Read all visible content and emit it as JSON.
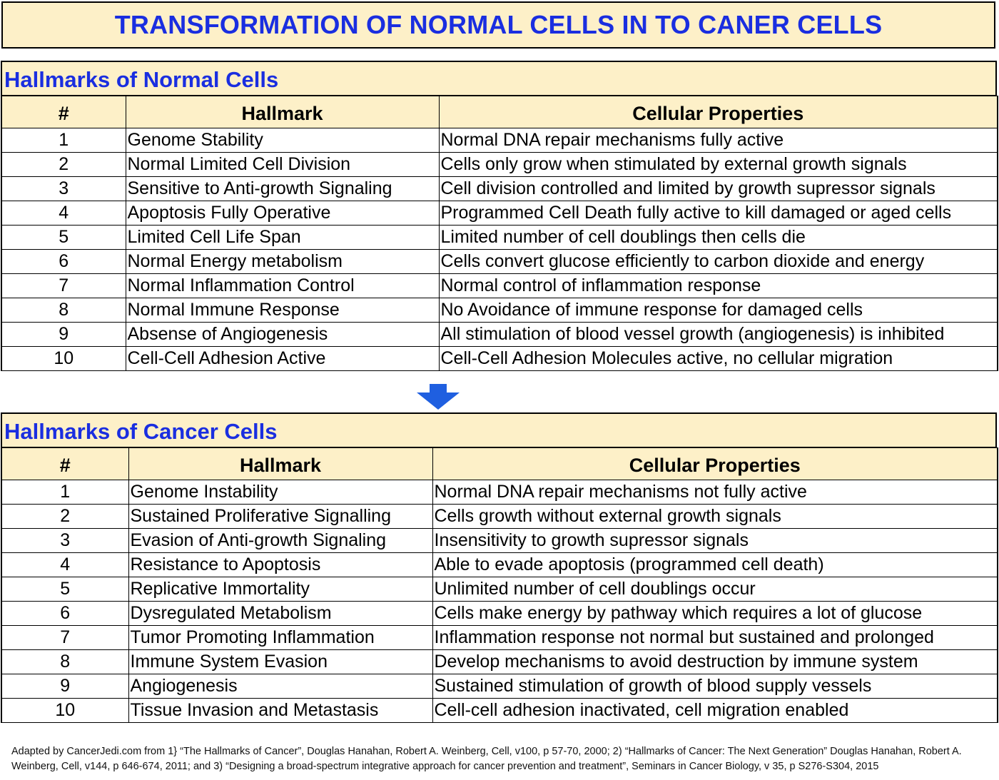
{
  "title": "TRANSFORMATION OF NORMAL CELLS IN TO CANER CELLS",
  "normal": {
    "heading": "Hallmarks of Normal Cells",
    "columns": [
      "#",
      "Hallmark",
      "Cellular Properties"
    ],
    "rows": [
      {
        "num": "1",
        "hallmark": "Genome Stability",
        "property": "Normal DNA repair mechanisms fully active"
      },
      {
        "num": "2",
        "hallmark": "Normal Limited Cell Division",
        "property": "Cells only grow when stimulated by external growth signals"
      },
      {
        "num": "3",
        "hallmark": "Sensitive to Anti-growth Signaling",
        "property": "Cell division controlled and limited by growth supressor signals"
      },
      {
        "num": "4",
        "hallmark": "Apoptosis Fully Operative",
        "property": "Programmed Cell Death fully active to kill damaged or aged cells"
      },
      {
        "num": "5",
        "hallmark": "Limited Cell Life Span",
        "property": "Limited number of cell doublings then cells die"
      },
      {
        "num": "6",
        "hallmark": "Normal Energy metabolism",
        "property": "Cells convert glucose efficiently to carbon dioxide and energy"
      },
      {
        "num": "7",
        "hallmark": "Normal Inflammation Control",
        "property": "Normal control of inflammation response"
      },
      {
        "num": "8",
        "hallmark": "Normal Immune Response",
        "property": "No Avoidance of immune response for damaged cells"
      },
      {
        "num": "9",
        "hallmark": "Absense of Angiogenesis",
        "property": "All stimulation of blood vessel growth (angiogenesis) is inhibited"
      },
      {
        "num": "10",
        "hallmark": "Cell-Cell Adhesion Active",
        "property": "Cell-Cell Adhesion Molecules active, no cellular migration"
      }
    ]
  },
  "cancer": {
    "heading": "Hallmarks of Cancer Cells",
    "columns": [
      "#",
      "Hallmark",
      "Cellular Properties"
    ],
    "rows": [
      {
        "num": "1",
        "hallmark": "Genome Instability",
        "property": "Normal DNA repair mechanisms not fully active"
      },
      {
        "num": "2",
        "hallmark": "Sustained Proliferative Signalling",
        "property": "Cells growth without external growth signals"
      },
      {
        "num": "3",
        "hallmark": "Evasion of Anti-growth Signaling",
        "property": "Insensitivity to growth supressor signals"
      },
      {
        "num": "4",
        "hallmark": "Resistance to Apoptosis",
        "property": "Able to evade apoptosis (programmed cell death)"
      },
      {
        "num": "5",
        "hallmark": "Replicative Immortality",
        "property": "Unlimited number of cell doublings occur"
      },
      {
        "num": "6",
        "hallmark": "Dysregulated Metabolism",
        "property": "Cells make energy by pathway which requires a lot of glucose"
      },
      {
        "num": "7",
        "hallmark": "Tumor Promoting Inflammation",
        "property": "Inflammation response not normal but sustained and prolonged"
      },
      {
        "num": "8",
        "hallmark": "Immune System Evasion",
        "property": "Develop mechanisms to avoid destruction by immune system"
      },
      {
        "num": "9",
        "hallmark": "Angiogenesis",
        "property": "Sustained stimulation of growth of blood supply vessels"
      },
      {
        "num": "10",
        "hallmark": "Tissue Invasion and Metastasis",
        "property": "Cell-cell adhesion inactivated, cell migration enabled"
      }
    ]
  },
  "footer": "Adapted by CancerJedi.com from 1} “The Hallmarks of Cancer”, Douglas Hanahan, Robert A. Weinberg, Cell, v100, p 57-70, 2000; 2) “Hallmarks of Cancer: The Next Generation” Douglas Hanahan, Robert A. Weinberg, Cell, v144, p 646-674, 2011; and 3) “Designing a broad-spectrum integrative approach for cancer prevention and treatment”, Seminars in Cancer Biology, v 35, p S276-S304, 2015",
  "colors": {
    "title_text": "#1a2ee0",
    "header_fill": "#fdf0c8",
    "arrow": "#1f5fe0"
  },
  "icons": {
    "transition_arrow": "arrow-down-icon"
  }
}
